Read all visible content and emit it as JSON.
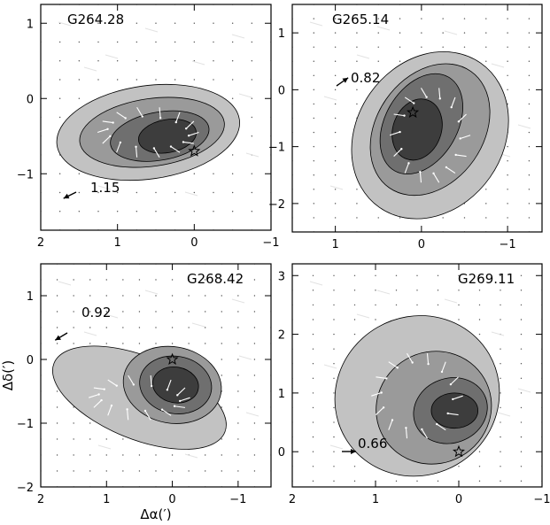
{
  "chart_data": [
    {
      "type": "vector-map",
      "title": "G264.28",
      "xlim": [
        2,
        -1
      ],
      "ylim": [
        -1.75,
        1.25
      ],
      "xticks": [
        "2",
        "1",
        "0",
        "−1"
      ],
      "yticks": [
        "1",
        "0",
        "−1"
      ],
      "vector_scale": {
        "label": "1.15",
        "dir": [
          -1,
          -0.5
        ]
      },
      "star": [
        0,
        -0.7
      ],
      "blobs": [
        {
          "cx": 0.6,
          "cy": -0.45,
          "rx": 1.2,
          "ry": 0.62,
          "rot": 8,
          "level": 1
        },
        {
          "cx": 0.55,
          "cy": -0.45,
          "rx": 0.95,
          "ry": 0.45,
          "rot": 8,
          "level": 2
        },
        {
          "cx": 0.45,
          "cy": -0.5,
          "rx": 0.65,
          "ry": 0.32,
          "rot": 10,
          "level": 3
        },
        {
          "cx": 0.35,
          "cy": -0.5,
          "rx": 0.38,
          "ry": 0.22,
          "rot": 10,
          "level": 4
        }
      ]
    },
    {
      "type": "vector-map",
      "title": "G265.14",
      "xlim": [
        1.5,
        -1.4
      ],
      "ylim": [
        -2.5,
        1.5
      ],
      "xticks": [
        "1",
        "0",
        "−1"
      ],
      "yticks": [
        "1",
        "0",
        "−1",
        "−2"
      ],
      "vector_scale": {
        "label": "0.82",
        "dir": [
          1,
          0.7
        ]
      },
      "star": [
        0.1,
        -0.4
      ],
      "blobs": [
        {
          "cx": -0.1,
          "cy": -0.8,
          "rx": 0.85,
          "ry": 1.55,
          "rot": -35,
          "level": 1
        },
        {
          "cx": -0.1,
          "cy": -0.7,
          "rx": 0.62,
          "ry": 1.25,
          "rot": -35,
          "level": 2
        },
        {
          "cx": 0.0,
          "cy": -0.6,
          "rx": 0.42,
          "ry": 0.95,
          "rot": -30,
          "level": 3
        },
        {
          "cx": 0.05,
          "cy": -0.7,
          "rx": 0.28,
          "ry": 0.55,
          "rot": -20,
          "level": 4
        }
      ]
    },
    {
      "type": "vector-map",
      "title": "G268.42",
      "xlim": [
        2,
        -1.5
      ],
      "ylim": [
        -2,
        1.5
      ],
      "xticks": [
        "2",
        "1",
        "0",
        "−1"
      ],
      "yticks": [
        "1",
        "0",
        "−1",
        "−2"
      ],
      "xlabel": "Δα(′)",
      "ylabel": "Δδ(′)",
      "vector_scale": {
        "label": "0.92",
        "dir": [
          -1,
          -0.6
        ]
      },
      "star": [
        0,
        0
      ],
      "blobs": [
        {
          "cx": 0.5,
          "cy": -0.6,
          "rx": 1.4,
          "ry": 0.65,
          "rot": -22,
          "level": 1
        },
        {
          "cx": 0.0,
          "cy": -0.4,
          "rx": 0.75,
          "ry": 0.6,
          "rot": -10,
          "level": 2
        },
        {
          "cx": -0.05,
          "cy": -0.4,
          "rx": 0.55,
          "ry": 0.45,
          "rot": -10,
          "level": 3
        },
        {
          "cx": -0.05,
          "cy": -0.4,
          "rx": 0.35,
          "ry": 0.28,
          "rot": -10,
          "level": 4
        }
      ]
    },
    {
      "type": "vector-map",
      "title": "G269.11",
      "xlim": [
        2,
        -1
      ],
      "ylim": [
        -0.6,
        3.2
      ],
      "xticks": [
        "2",
        "1",
        "0",
        "−1"
      ],
      "yticks": [
        "3",
        "2",
        "1",
        "0"
      ],
      "vector_scale": {
        "label": "0.66",
        "dir": [
          1,
          0
        ]
      },
      "star": [
        0,
        0
      ],
      "blobs": [
        {
          "cx": 0.5,
          "cy": 0.95,
          "rx": 1.0,
          "ry": 1.35,
          "rot": 30,
          "level": 1
        },
        {
          "cx": 0.3,
          "cy": 0.75,
          "rx": 0.7,
          "ry": 0.95,
          "rot": 30,
          "level": 2
        },
        {
          "cx": 0.1,
          "cy": 0.7,
          "rx": 0.45,
          "ry": 0.55,
          "rot": 20,
          "level": 3
        },
        {
          "cx": 0.05,
          "cy": 0.7,
          "rx": 0.28,
          "ry": 0.3,
          "rot": 0,
          "level": 4
        }
      ]
    }
  ],
  "colors": {
    "level1": "#c2c2c2",
    "level2": "#9a9a9a",
    "level3": "#6f6f6f",
    "level4": "#3d3d3d",
    "vector": "#ffffff",
    "faint_vector": "#e2e2e2"
  }
}
